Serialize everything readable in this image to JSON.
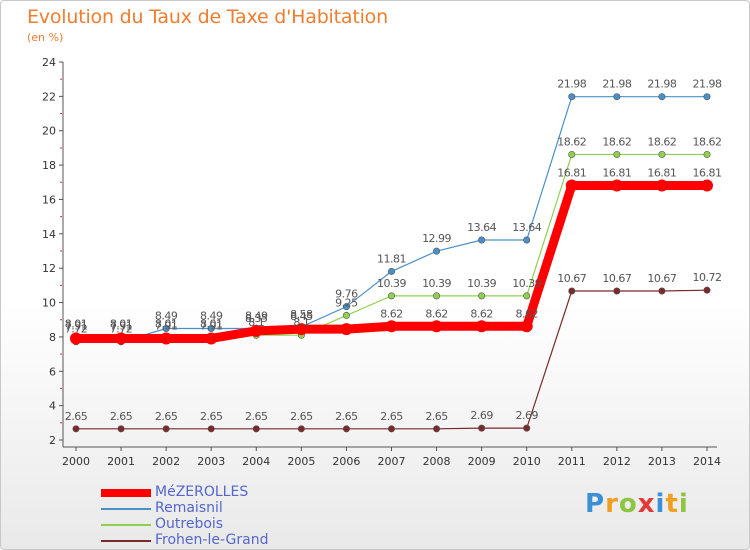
{
  "header": {
    "title": "Evolution du Taux de Taxe d'Habitation",
    "unit": "(en %)"
  },
  "chart_data": {
    "type": "line",
    "title": "Evolution du Taux de Taxe d'Habitation",
    "ylabel": "(en %)",
    "xlabel": "",
    "x": [
      "2000",
      "2001",
      "2002",
      "2003",
      "2004",
      "2005",
      "2006",
      "2007",
      "2008",
      "2009",
      "2010",
      "2011",
      "2012",
      "2013",
      "2014"
    ],
    "ylim": [
      2,
      24
    ],
    "yticks": [
      2,
      4,
      6,
      8,
      10,
      12,
      14,
      16,
      18,
      20,
      22,
      24
    ],
    "grid": false,
    "legend_position": "bottom-left",
    "series": [
      {
        "name": "Remaisnil",
        "color": "#4a90c8",
        "values": [
          7.72,
          7.72,
          8.49,
          8.49,
          8.49,
          8.58,
          9.76,
          11.81,
          12.99,
          13.64,
          13.64,
          21.98,
          21.98,
          21.98,
          21.98
        ],
        "labels": [
          "7.72",
          "7.72",
          "8.49",
          "8.49",
          "8.49",
          "8.58",
          "9.76",
          "11.81",
          "12.99",
          "13.64",
          "13.64",
          "21.98",
          "21.98",
          "21.98",
          "21.98"
        ]
      },
      {
        "name": "Outrebois",
        "color": "#8fd14f",
        "values": [
          8.01,
          8.01,
          8.01,
          8.01,
          8.1,
          8.1,
          9.25,
          10.39,
          10.39,
          10.39,
          10.39,
          18.62,
          18.62,
          18.62,
          18.62
        ],
        "labels": [
          "8.01",
          "8.01",
          "8.01",
          "8.01",
          "8.1",
          "8.1",
          "9.25",
          "10.39",
          "10.39",
          "10.39",
          "10.39",
          "18.62",
          "18.62",
          "18.62",
          "18.62"
        ]
      },
      {
        "name": "Frohen-le-Grand",
        "color": "#7a2a2a",
        "values": [
          2.65,
          2.65,
          2.65,
          2.65,
          2.65,
          2.65,
          2.65,
          2.65,
          2.65,
          2.69,
          2.69,
          10.67,
          10.67,
          10.67,
          10.72
        ],
        "labels": [
          "2.65",
          "2.65",
          "2.65",
          "2.65",
          "2.65",
          "2.65",
          "2.65",
          "2.65",
          "2.65",
          "2.69",
          "2.69",
          "10.67",
          "10.67",
          "10.67",
          "10.72"
        ]
      },
      {
        "name": "MéZEROLLES",
        "color": "#ff0000",
        "highlight": true,
        "values": [
          7.91,
          7.91,
          7.91,
          7.91,
          8.35,
          8.45,
          8.45,
          8.62,
          8.62,
          8.62,
          8.62,
          16.81,
          16.81,
          16.81,
          16.81
        ],
        "labels": [
          "7.91",
          "7.91",
          "7.91",
          "7.91",
          "8.35",
          "8.45",
          "",
          "8.62",
          "8.62",
          "8.62",
          "8.62",
          "16.81",
          "16.81",
          "16.81",
          "16.81"
        ]
      }
    ]
  },
  "legend": {
    "items": [
      {
        "label": "MéZEROLLES",
        "color": "#ff0000",
        "thick": true
      },
      {
        "label": "Remaisnil",
        "color": "#4a90c8",
        "thick": false
      },
      {
        "label": "Outrebois",
        "color": "#8fd14f",
        "thick": false
      },
      {
        "label": "Frohen-le-Grand",
        "color": "#7a2a2a",
        "thick": false
      }
    ]
  },
  "logo": {
    "letters": [
      {
        "ch": "P",
        "color": "#3b8fd6"
      },
      {
        "ch": "r",
        "color": "#f0a020"
      },
      {
        "ch": "o",
        "color": "#8cc63f"
      },
      {
        "ch": "x",
        "color": "#e53935"
      },
      {
        "ch": "i",
        "color": "#3b8fd6"
      },
      {
        "ch": "t",
        "color": "#f0a020"
      },
      {
        "ch": "i",
        "color": "#8cc63f"
      }
    ]
  }
}
